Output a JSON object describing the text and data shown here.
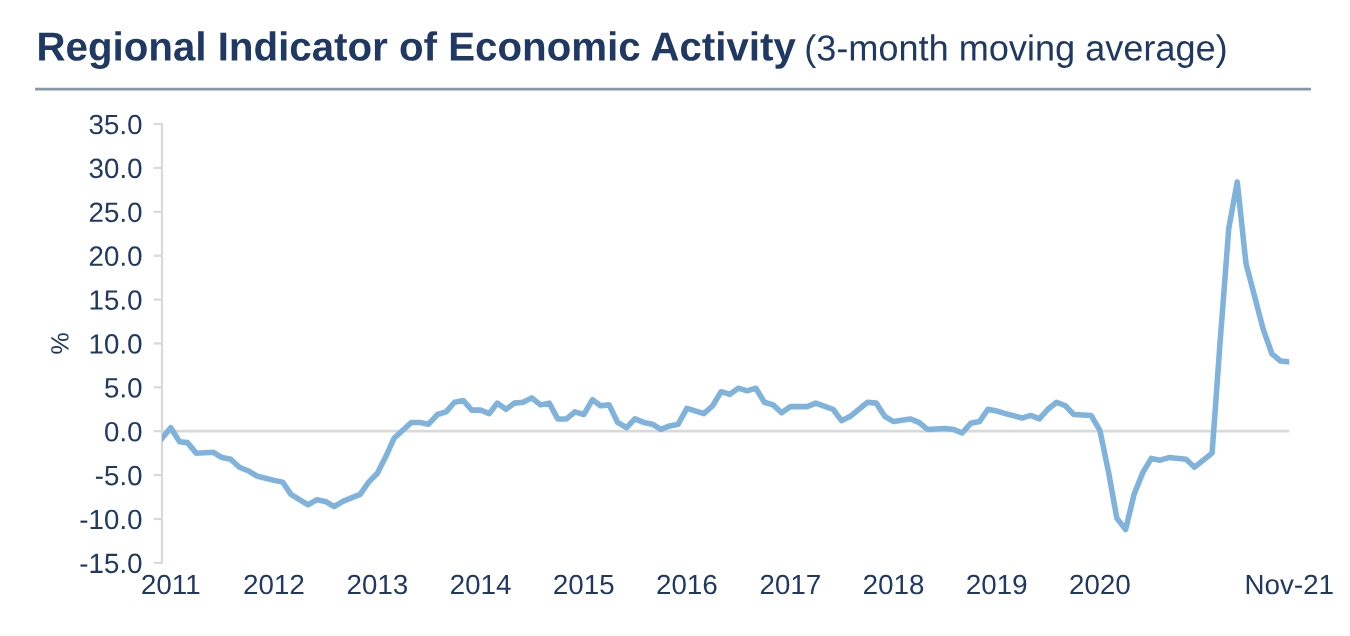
{
  "chart_data": {
    "type": "line",
    "title": "Regional Indicator of Economic Activity",
    "subtitle": "(3-month moving average)",
    "ylabel": "%",
    "x": [
      "2010-12",
      "2011-01",
      "2011-02",
      "2011-03",
      "2011-04",
      "2011-06",
      "2011-07",
      "2011-08",
      "2011-09",
      "2011-10",
      "2011-11",
      "2012-01",
      "2012-02",
      "2012-03",
      "2012-05",
      "2012-06",
      "2012-07",
      "2012-08",
      "2012-09",
      "2012-10",
      "2012-11",
      "2012-12",
      "2013-01",
      "2013-02",
      "2013-03",
      "2013-05",
      "2013-06",
      "2013-07",
      "2013-08",
      "2013-09",
      "2013-10",
      "2013-11",
      "2013-12",
      "2014-01",
      "2014-02",
      "2014-03",
      "2014-04",
      "2014-05",
      "2014-06",
      "2014-07",
      "2014-08",
      "2014-09",
      "2014-10",
      "2014-11",
      "2014-12",
      "2015-01",
      "2015-02",
      "2015-03",
      "2015-04",
      "2015-05",
      "2015-06",
      "2015-07",
      "2015-08",
      "2015-09",
      "2015-10",
      "2015-11",
      "2015-12",
      "2016-01",
      "2016-03",
      "2016-04",
      "2016-05",
      "2016-06",
      "2016-07",
      "2016-08",
      "2016-09",
      "2016-10",
      "2016-11",
      "2016-12",
      "2017-01",
      "2017-03",
      "2017-04",
      "2017-06",
      "2017-07",
      "2017-08",
      "2017-10",
      "2017-11",
      "2017-12",
      "2018-01",
      "2018-03",
      "2018-04",
      "2018-05",
      "2018-07",
      "2018-08",
      "2018-09",
      "2018-10",
      "2018-11",
      "2018-12",
      "2019-01",
      "2019-02",
      "2019-04",
      "2019-05",
      "2019-06",
      "2019-07",
      "2019-08",
      "2019-09",
      "2019-10",
      "2019-12",
      "2020-01",
      "2020-02",
      "2020-03",
      "2020-04",
      "2020-05",
      "2020-06",
      "2020-07",
      "2020-08",
      "2020-09",
      "2020-11",
      "2020-12",
      "2021-02",
      "2021-03",
      "2021-04",
      "2021-05",
      "2021-06",
      "2021-08",
      "2021-09",
      "2021-10",
      "2021-11"
    ],
    "series": [
      {
        "color": "#80b3dc",
        "values": [
          -0.8,
          0.4,
          -1.2,
          -1.3,
          -2.5,
          -2.4,
          -3.0,
          -3.2,
          -4.1,
          -4.5,
          -5.1,
          -5.6,
          -5.8,
          -7.2,
          -8.4,
          -7.8,
          -8.0,
          -8.6,
          -8.0,
          -7.6,
          -7.2,
          -5.8,
          -4.8,
          -2.8,
          -0.8,
          1.0,
          1.0,
          0.8,
          1.9,
          2.2,
          3.3,
          3.5,
          2.4,
          2.4,
          2.0,
          3.2,
          2.5,
          3.2,
          3.3,
          3.8,
          3.0,
          3.2,
          1.4,
          1.4,
          2.2,
          1.9,
          3.6,
          2.9,
          3.0,
          1.0,
          0.4,
          1.4,
          1.0,
          0.8,
          0.2,
          0.6,
          0.8,
          2.6,
          2.0,
          2.9,
          4.5,
          4.2,
          4.9,
          4.6,
          4.9,
          3.3,
          3.0,
          2.1,
          2.8,
          2.8,
          3.2,
          2.5,
          1.2,
          1.7,
          3.3,
          3.2,
          1.7,
          1.1,
          1.4,
          1.0,
          0.2,
          0.3,
          0.2,
          -0.2,
          0.9,
          1.1,
          2.5,
          2.3,
          2.0,
          1.5,
          1.8,
          1.4,
          2.5,
          3.3,
          2.9,
          1.9,
          1.8,
          0.1,
          -4.7,
          -9.9,
          -11.2,
          -7.2,
          -4.7,
          -3.1,
          -3.3,
          -3.0,
          -3.2,
          -4.1,
          -2.5,
          10.0,
          23.1,
          28.4,
          19.1,
          11.6,
          8.8,
          8.0,
          7.9
        ]
      }
    ],
    "xlim": [
      "2010-12",
      "2021-11"
    ],
    "xticks": [
      {
        "value": "2011",
        "label": "2011"
      },
      {
        "value": "2012",
        "label": "2012"
      },
      {
        "value": "2013",
        "label": "2013"
      },
      {
        "value": "2014",
        "label": "2014"
      },
      {
        "value": "2015",
        "label": "2015"
      },
      {
        "value": "2016",
        "label": "2016"
      },
      {
        "value": "2017",
        "label": "2017"
      },
      {
        "value": "2018",
        "label": "2018"
      },
      {
        "value": "2019",
        "label": "2019"
      },
      {
        "value": "2020",
        "label": "2020"
      },
      {
        "value": "2021-11",
        "label": "Nov-21"
      }
    ],
    "ylim": [
      -15,
      35
    ],
    "yticks": [
      {
        "value": -15,
        "label": "-15.0"
      },
      {
        "value": -10,
        "label": "-10.0"
      },
      {
        "value": -5,
        "label": "-5.0"
      },
      {
        "value": 0,
        "label": "0.0"
      },
      {
        "value": 5,
        "label": "5.0"
      },
      {
        "value": 10,
        "label": "10.0"
      },
      {
        "value": 15,
        "label": "15.0"
      },
      {
        "value": 20,
        "label": "20.0"
      },
      {
        "value": 25,
        "label": "25.0"
      },
      {
        "value": 30,
        "label": "30.0"
      },
      {
        "value": 35,
        "label": "35.0"
      }
    ],
    "ref_lines": [
      {
        "axis": "y",
        "value": 0,
        "color": "#d9d9d9"
      }
    ],
    "grid": false,
    "legend": false,
    "marker": "none",
    "line_style": "solid"
  }
}
